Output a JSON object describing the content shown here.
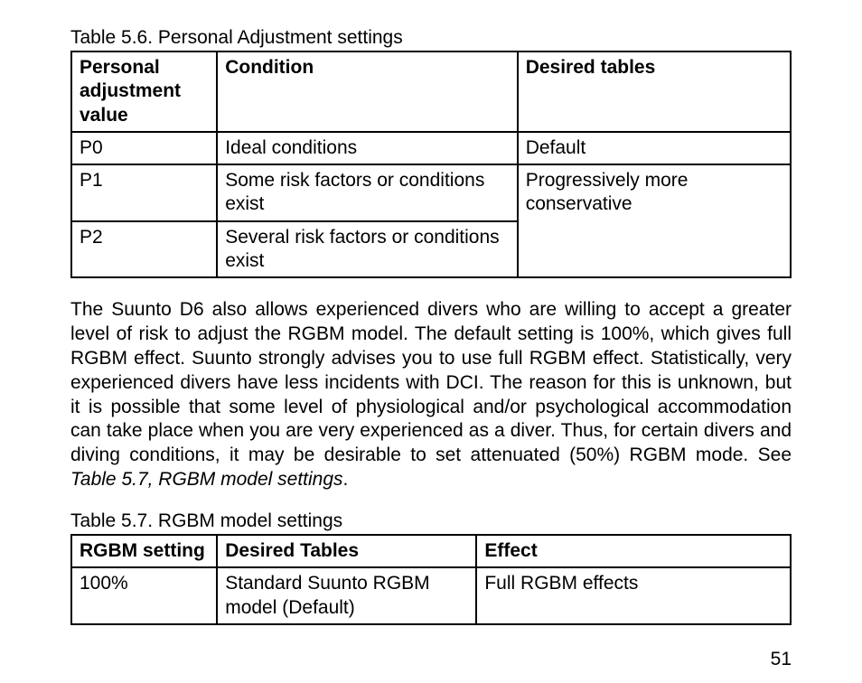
{
  "page_number": "51",
  "table56": {
    "caption": "Table 5.6. Personal Adjustment settings",
    "headers": [
      "Personal adjustment value",
      "Condition",
      "Desired tables"
    ],
    "rows": [
      {
        "value": "P0",
        "condition": "Ideal conditions",
        "tables": "Default"
      },
      {
        "value": "P1",
        "condition": "Some risk factors or conditions exist",
        "tables": "Progressively more conservative"
      },
      {
        "value": "P2",
        "condition": "Several risk factors or conditions exist",
        "tables": ""
      }
    ]
  },
  "paragraph": {
    "text": "The Suunto D6 also allows experienced divers who are willing to accept a greater level of risk to adjust the RGBM model. The default setting is 100%, which gives full RGBM effect. Suunto strongly advises you to use full RGBM effect. Statistically, very experienced divers have less incidents with DCI. The reason for this is unknown, but it is possible that some level of physiological and/or psychological accommodation can take place when you are very experienced as a diver. Thus, for certain divers and diving conditions, it may be desirable to set attenuated (50%) RGBM mode. See ",
    "ref": "Table 5.7, RGBM model settings",
    "tail": "."
  },
  "table57": {
    "caption": "Table 5.7. RGBM model settings",
    "headers": [
      "RGBM setting",
      "Desired Tables",
      "Effect"
    ],
    "rows": [
      {
        "setting": "100%",
        "tables": "Standard Suunto RGBM model (Default)",
        "effect": "Full RGBM effects"
      }
    ]
  }
}
